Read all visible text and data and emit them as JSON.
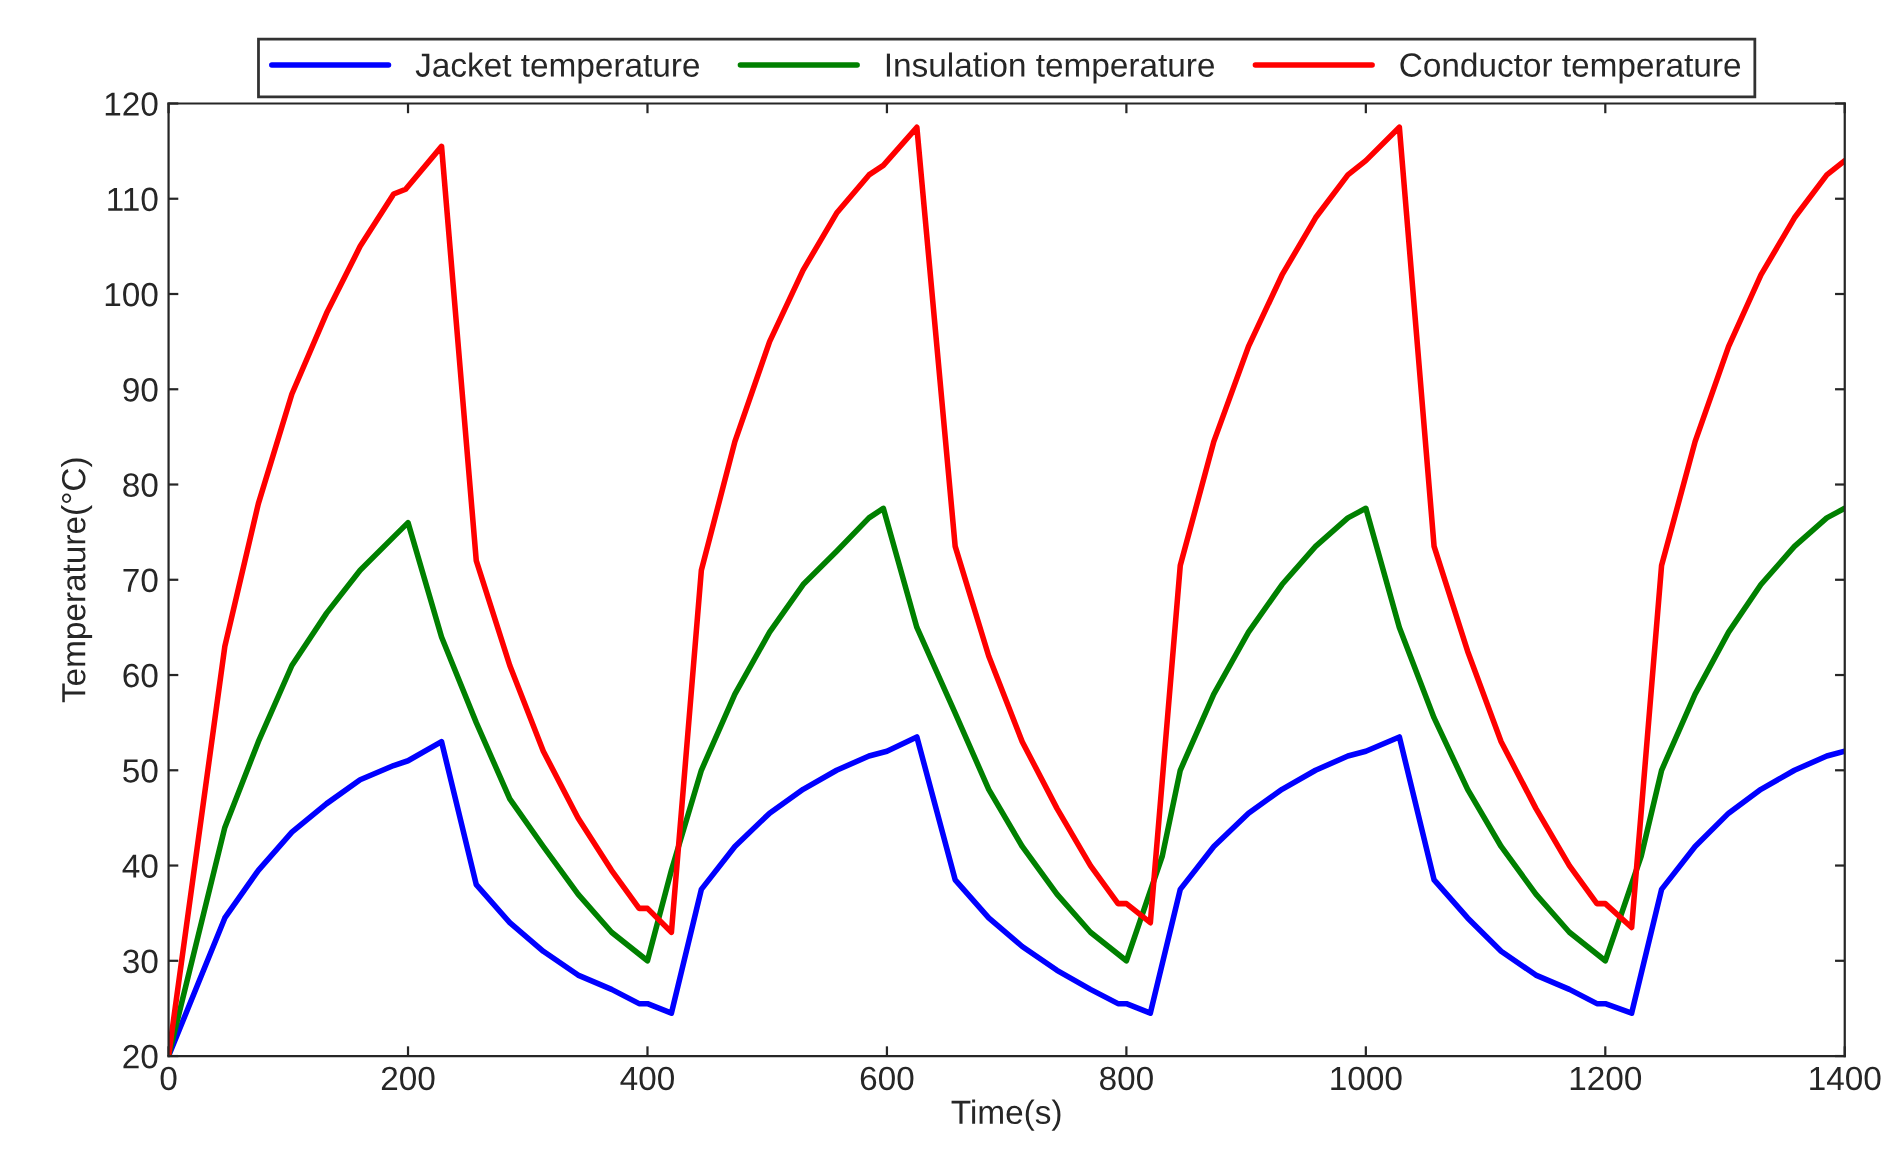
{
  "chart_data": {
    "type": "line",
    "xlabel": "Time(s)",
    "ylabel": "Temperature(°C)",
    "xlim": [
      0,
      1400
    ],
    "ylim": [
      20,
      120
    ],
    "xticks": [
      0,
      200,
      400,
      600,
      800,
      1000,
      1200,
      1400
    ],
    "yticks": [
      20,
      30,
      40,
      50,
      60,
      70,
      80,
      90,
      100,
      110,
      120
    ],
    "grid": false,
    "legend": "top",
    "marker": "none",
    "line_style": "solid",
    "series": [
      {
        "name": "Jacket temperature",
        "color": "#0000ff",
        "x": [
          0,
          47,
          75,
          103,
          132,
          160,
          188,
          200,
          228,
          257,
          285,
          313,
          342,
          370,
          393,
          400,
          420,
          445,
          473,
          502,
          530,
          558,
          585,
          600,
          625,
          657,
          685,
          713,
          742,
          770,
          793,
          800,
          820,
          845,
          873,
          902,
          930,
          958,
          985,
          1000,
          1028,
          1057,
          1085,
          1113,
          1142,
          1170,
          1193,
          1200,
          1222,
          1247,
          1275,
          1303,
          1330,
          1358,
          1385,
          1400
        ],
        "values": [
          20,
          34.5,
          39.5,
          43.5,
          46.5,
          49,
          50.5,
          51,
          53,
          38,
          34,
          31,
          28.5,
          27,
          25.5,
          25.5,
          24.5,
          37.5,
          42,
          45.5,
          48,
          50,
          51.5,
          52,
          53.5,
          38.5,
          34.5,
          31.5,
          29,
          27,
          25.5,
          25.5,
          24.5,
          37.5,
          42,
          45.5,
          48,
          50,
          51.5,
          52,
          53.5,
          38.5,
          34.5,
          31,
          28.5,
          27,
          25.5,
          25.5,
          24.5,
          37.5,
          42,
          45.5,
          48,
          50,
          51.5,
          52
        ]
      },
      {
        "name": "Insulation temperature",
        "color": "#008000",
        "x": [
          0,
          47,
          75,
          103,
          132,
          160,
          188,
          200,
          228,
          257,
          285,
          313,
          342,
          370,
          400,
          420,
          445,
          473,
          502,
          530,
          558,
          585,
          597,
          625,
          657,
          685,
          713,
          742,
          770,
          800,
          830,
          845,
          873,
          902,
          930,
          958,
          985,
          1000,
          1028,
          1057,
          1085,
          1113,
          1142,
          1170,
          1200,
          1230,
          1247,
          1275,
          1303,
          1330,
          1358,
          1385,
          1400
        ],
        "values": [
          20,
          44,
          53,
          61,
          66.5,
          71,
          74.5,
          76,
          64,
          55,
          47,
          42,
          37,
          33,
          30,
          39.5,
          50,
          58,
          64.5,
          69.5,
          73,
          76.5,
          77.5,
          65,
          56,
          48,
          42,
          37,
          33,
          30,
          41,
          50,
          58,
          64.5,
          69.5,
          73.5,
          76.5,
          77.5,
          65,
          55.5,
          48,
          42,
          37,
          33,
          30,
          41,
          50,
          58,
          64.5,
          69.5,
          73.5,
          76.5,
          77.5
        ]
      },
      {
        "name": "Conductor temperature",
        "color": "#ff0000",
        "x": [
          0,
          47,
          75,
          103,
          132,
          160,
          188,
          198,
          228,
          257,
          285,
          313,
          342,
          370,
          393,
          400,
          420,
          445,
          473,
          502,
          530,
          558,
          585,
          597,
          625,
          657,
          685,
          713,
          742,
          770,
          793,
          800,
          820,
          845,
          873,
          902,
          930,
          958,
          985,
          1000,
          1028,
          1057,
          1085,
          1113,
          1142,
          1170,
          1193,
          1200,
          1222,
          1247,
          1275,
          1303,
          1330,
          1358,
          1385,
          1400
        ],
        "values": [
          20,
          63,
          78,
          89.5,
          98,
          105,
          110.5,
          111,
          115.5,
          72,
          61,
          52,
          45,
          39.5,
          35.5,
          35.5,
          33,
          71,
          84.5,
          95,
          102.5,
          108.5,
          112.5,
          113.5,
          117.5,
          73.5,
          62,
          53,
          46,
          40,
          36,
          36,
          34,
          71.5,
          84.5,
          94.5,
          102,
          108,
          112.5,
          114,
          117.5,
          73.5,
          62.5,
          53,
          46,
          40,
          36,
          36,
          33.5,
          71.5,
          84.5,
          94.5,
          102,
          108,
          112.5,
          114
        ]
      }
    ]
  }
}
